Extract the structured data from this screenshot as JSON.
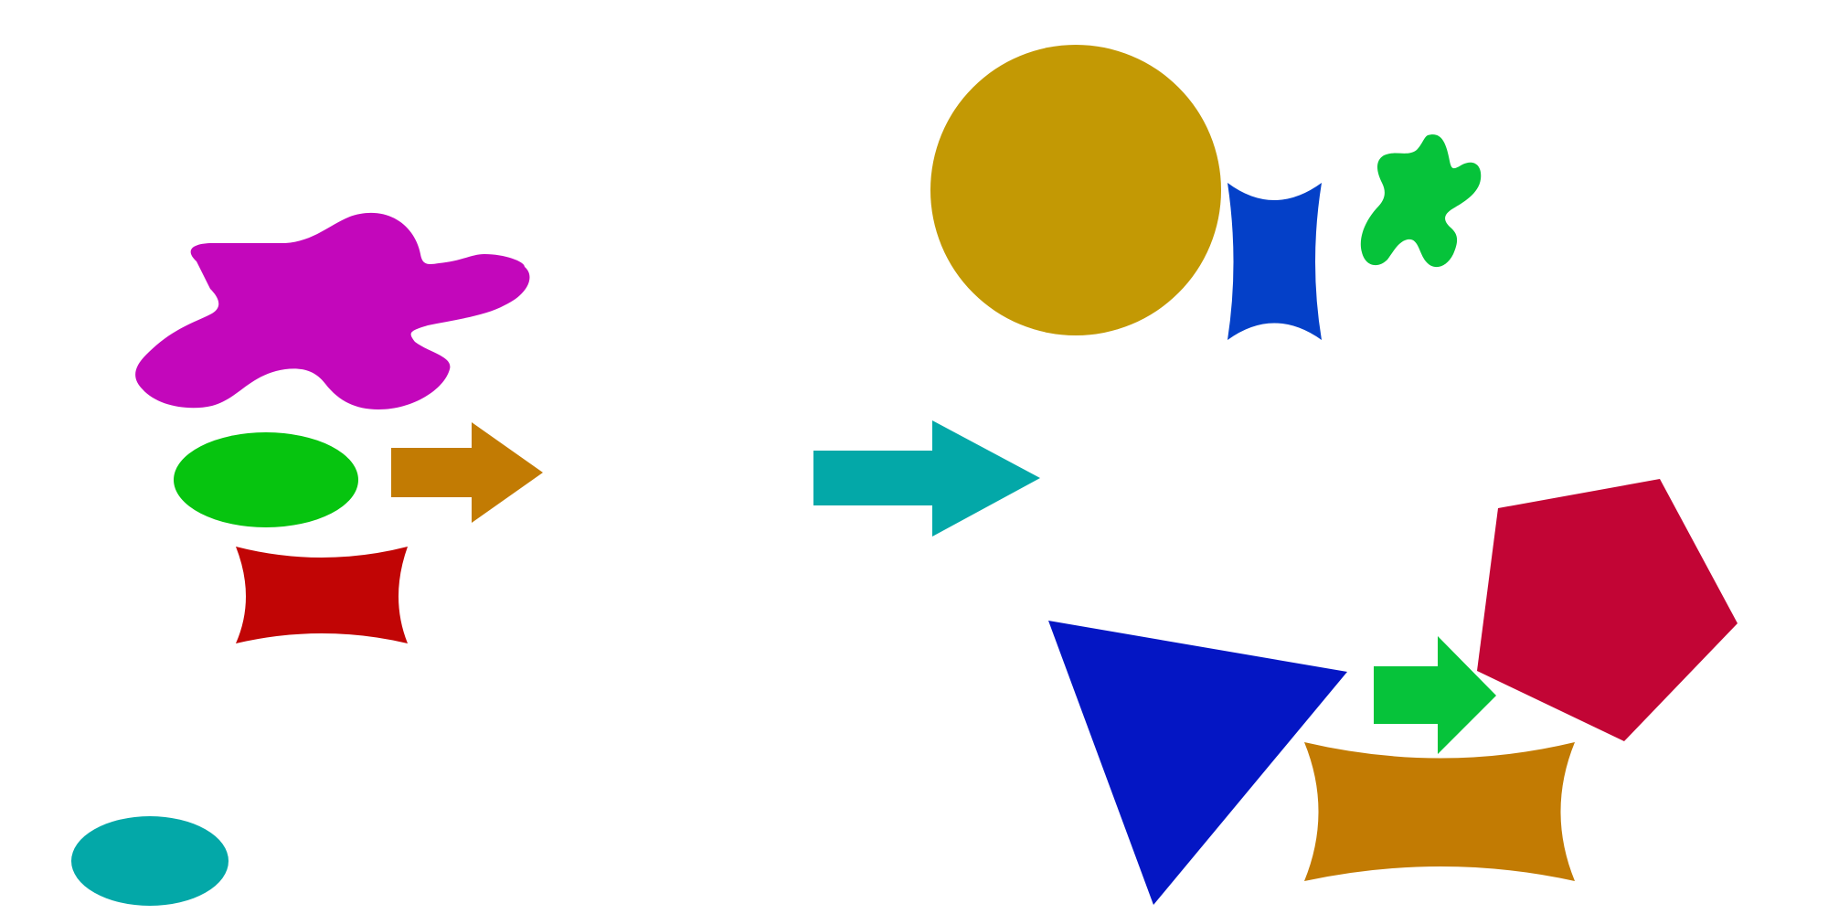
{
  "canvas": {
    "background": "#ffffff"
  },
  "shapes": {
    "magenta_blob": {
      "kind": "blob",
      "color": "#c307bb"
    },
    "green_ellipse": {
      "kind": "ellipse",
      "color": "#06c40f"
    },
    "orange_arrow_small": {
      "kind": "arrow",
      "color": "#c27b03"
    },
    "red_concave_rect": {
      "kind": "concave-rectangle",
      "color": "#c10505"
    },
    "teal_ellipse": {
      "kind": "ellipse",
      "color": "#03a8a8"
    },
    "teal_arrow": {
      "kind": "arrow",
      "color": "#03a8a8"
    },
    "gold_circle": {
      "kind": "circle",
      "color": "#c39904"
    },
    "blue_concave_rect": {
      "kind": "concave-rectangle",
      "color": "#0440c8"
    },
    "green_blob": {
      "kind": "blob",
      "color": "#06c33a"
    },
    "crimson_pentagon": {
      "kind": "pentagon",
      "color": "#c20535"
    },
    "blue_triangle": {
      "kind": "triangle",
      "color": "#0416c4"
    },
    "green_arrow": {
      "kind": "arrow",
      "color": "#06c33a"
    },
    "orange_concave_rect": {
      "kind": "concave-rectangle",
      "color": "#c27b03"
    }
  }
}
